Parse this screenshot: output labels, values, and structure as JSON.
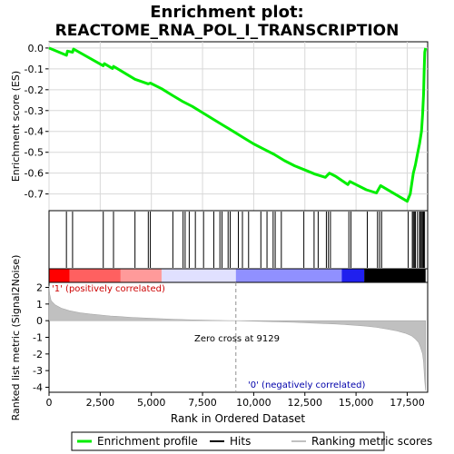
{
  "title_line1": "Enrichment plot:",
  "title_line2": "REACTOME_RNA_POL_I_TRANSCRIPTION",
  "chart_data": [
    {
      "type": "line",
      "panel": "enrichment",
      "ylabel": "Enrichment score (ES)",
      "xlim": [
        0,
        18500
      ],
      "ylim": [
        -0.78,
        0.03
      ],
      "yticks": [
        0.0,
        -0.1,
        -0.2,
        -0.3,
        -0.4,
        -0.5,
        -0.6,
        -0.7
      ],
      "ytick_labels": [
        "0.0",
        "-0.1",
        "-0.2",
        "-0.3",
        "-0.4",
        "-0.5",
        "-0.6",
        "-0.7"
      ],
      "grid": true,
      "series": [
        {
          "name": "Enrichment profile",
          "color": "#00ee00",
          "x": [
            0,
            850,
            900,
            1150,
            1200,
            2650,
            2700,
            3100,
            3150,
            4200,
            4850,
            4950,
            5500,
            6000,
            6500,
            7000,
            7500,
            8000,
            8500,
            9000,
            9500,
            10000,
            10500,
            11000,
            11500,
            12000,
            12500,
            13000,
            13500,
            13700,
            14000,
            14600,
            14700,
            15000,
            15500,
            16000,
            16200,
            17500,
            17650,
            17800,
            17900,
            18000,
            18100,
            18200,
            18250,
            18300,
            18330,
            18360,
            18400
          ],
          "y": [
            0.0,
            -0.035,
            -0.015,
            -0.02,
            -0.005,
            -0.085,
            -0.075,
            -0.098,
            -0.088,
            -0.15,
            -0.172,
            -0.168,
            -0.195,
            -0.225,
            -0.255,
            -0.28,
            -0.31,
            -0.34,
            -0.37,
            -0.4,
            -0.43,
            -0.46,
            -0.485,
            -0.51,
            -0.54,
            -0.565,
            -0.585,
            -0.605,
            -0.62,
            -0.6,
            -0.615,
            -0.655,
            -0.64,
            -0.655,
            -0.68,
            -0.695,
            -0.66,
            -0.735,
            -0.7,
            -0.6,
            -0.56,
            -0.51,
            -0.46,
            -0.4,
            -0.32,
            -0.22,
            -0.1,
            -0.02,
            0.0
          ]
        }
      ]
    },
    {
      "type": "scatter",
      "panel": "hits",
      "series": [
        {
          "name": "Hits",
          "color": "#000000",
          "x": [
            850,
            1150,
            2650,
            3150,
            4200,
            4850,
            4950,
            6050,
            6550,
            6650,
            6850,
            7150,
            7550,
            8050,
            8350,
            8450,
            8750,
            8850,
            9250,
            9450,
            9750,
            10350,
            10650,
            10950,
            11050,
            11350,
            12450,
            12950,
            13150,
            13550,
            13650,
            13750,
            14650,
            14750,
            15550,
            16050,
            16150,
            16250,
            17550,
            17750,
            17800,
            17850,
            17900,
            18000,
            18100,
            18150,
            18200,
            18250,
            18300,
            18350
          ]
        }
      ]
    },
    {
      "type": "heatmap",
      "panel": "rank-colorbar",
      "colors": [
        "#ff0000",
        "#ff6060",
        "#ff9a9a",
        "#e0e0ff",
        "#9090ff",
        "#2020ee"
      ],
      "x_breaks": [
        0,
        1000,
        3500,
        5500,
        9129,
        14300,
        15400,
        18400
      ]
    },
    {
      "type": "area",
      "panel": "ranked-metric",
      "xlabel": "Rank in Ordered Dataset",
      "ylabel": "Ranked list metric (Signal2Noise)",
      "xlim": [
        0,
        18500
      ],
      "ylim": [
        -4.3,
        2.3
      ],
      "xticks": [
        0,
        2500,
        5000,
        7500,
        10000,
        12500,
        15000,
        17500
      ],
      "xtick_labels": [
        "0",
        "2,500",
        "5,000",
        "7,500",
        "10,000",
        "12,500",
        "15,000",
        "17,500"
      ],
      "yticks": [
        2,
        1,
        0,
        -1,
        -2,
        -3,
        -4
      ],
      "ytick_labels": [
        "2",
        "1",
        "0",
        "-1",
        "-2",
        "-3",
        "-4"
      ],
      "zero_cross": 9129,
      "zero_cross_label": "Zero cross at 9129",
      "pos_label": "'1' (positively correlated)",
      "neg_label": "'0' (negatively correlated)",
      "series": [
        {
          "name": "Ranking metric scores",
          "color": "#c0c0c0",
          "x": [
            0,
            30,
            100,
            300,
            600,
            1000,
            1500,
            2000,
            3000,
            4000,
            5000,
            6000,
            7000,
            8000,
            9129,
            10000,
            11000,
            12000,
            13000,
            14000,
            15000,
            15500,
            16000,
            16500,
            17000,
            17400,
            17700,
            17900,
            18050,
            18150,
            18250,
            18300,
            18350,
            18400
          ],
          "y": [
            2.1,
            1.6,
            1.2,
            0.95,
            0.75,
            0.6,
            0.48,
            0.4,
            0.28,
            0.2,
            0.14,
            0.09,
            0.05,
            0.02,
            0.0,
            -0.03,
            -0.06,
            -0.1,
            -0.15,
            -0.2,
            -0.28,
            -0.33,
            -0.4,
            -0.5,
            -0.62,
            -0.75,
            -0.9,
            -1.1,
            -1.3,
            -1.6,
            -2.0,
            -2.5,
            -3.5,
            -4.2
          ]
        }
      ]
    }
  ],
  "legend": {
    "items": [
      {
        "label": "Enrichment profile",
        "color": "#00ee00"
      },
      {
        "label": "Hits",
        "color": "#000000"
      },
      {
        "label": "Ranking metric scores",
        "color": "#c0c0c0"
      }
    ]
  }
}
